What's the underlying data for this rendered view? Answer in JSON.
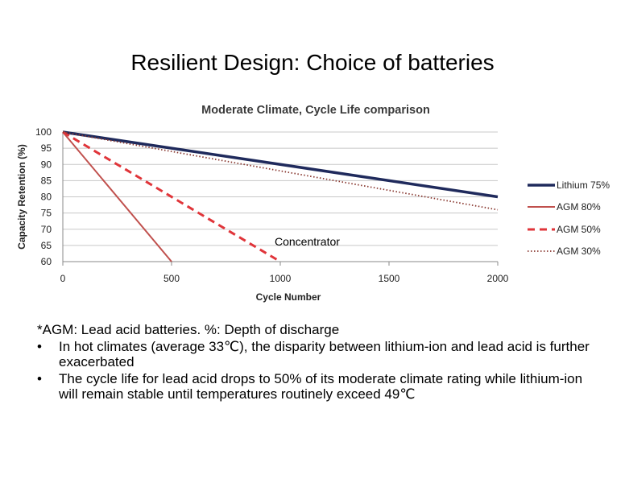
{
  "slide": {
    "title": "Resilient Design: Choice of batteries"
  },
  "chart_data": {
    "type": "line",
    "title": "Moderate Climate, Cycle Life comparison",
    "xlabel": "Cycle Number",
    "ylabel": "Capacity Retention (%)",
    "xlim": [
      0,
      2000
    ],
    "ylim": [
      60,
      100
    ],
    "x_ticks": [
      0,
      500,
      1000,
      1500,
      2000
    ],
    "y_ticks": [
      60,
      65,
      70,
      75,
      80,
      85,
      90,
      95,
      100
    ],
    "grid": true,
    "legend_position": "right",
    "series": [
      {
        "name": "Lithium 75%",
        "style": "solid-thick",
        "color": "#1f2a5c",
        "x": [
          0,
          2000
        ],
        "y": [
          100,
          80
        ]
      },
      {
        "name": "AGM 80%",
        "style": "solid",
        "color": "#c0504d",
        "x": [
          0,
          500
        ],
        "y": [
          100,
          60
        ]
      },
      {
        "name": "AGM 50%",
        "style": "dashed",
        "color": "#e0353a",
        "x": [
          0,
          1000
        ],
        "y": [
          100,
          60
        ]
      },
      {
        "name": "AGM 30%",
        "style": "dotted",
        "color": "#8a3a32",
        "x": [
          0,
          2000
        ],
        "y": [
          100,
          76
        ]
      }
    ],
    "annotations": [
      {
        "text": "Concentrator",
        "x": 1000,
        "y": 66
      }
    ]
  },
  "notes": {
    "footnote": "*AGM: Lead acid batteries. %: Depth of discharge",
    "bullet_symbol": "•",
    "bullets": [
      "In hot climates (average 33℃), the disparity between lithium-ion and lead acid is further exacerbated",
      " The cycle life for lead acid drops to 50% of its moderate climate rating while lithium-ion will remain stable until temperatures routinely exceed 49℃"
    ]
  }
}
